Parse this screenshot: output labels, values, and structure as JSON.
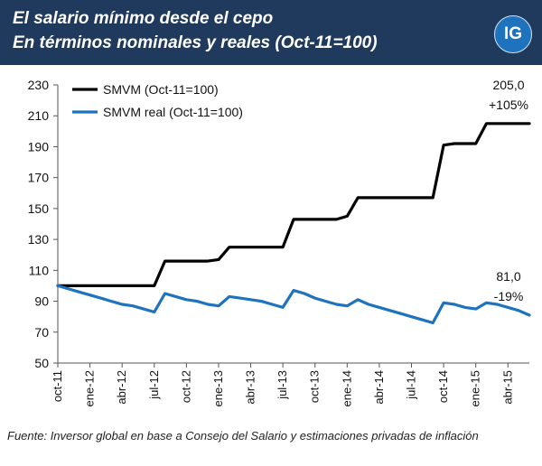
{
  "header": {
    "title_line1": "El salario mínimo desde el cepo",
    "title_line2": "En términos nominales y reales (Oct-11=100)",
    "logo": "IG"
  },
  "source": "Fuente: Inversor global en base a Consejo del Salario y estimaciones privadas de inflación",
  "colors": {
    "header_bg": "#1f3a5c",
    "nominal": "#000000",
    "real": "#1e73be",
    "logo": "#1e73be"
  },
  "chart_data": {
    "type": "line",
    "x": [
      "oct-11",
      "nov-11",
      "dic-11",
      "ene-12",
      "feb-12",
      "mar-12",
      "abr-12",
      "may-12",
      "jun-12",
      "jul-12",
      "ago-12",
      "sep-12",
      "oct-12",
      "nov-12",
      "dic-12",
      "ene-13",
      "feb-13",
      "mar-13",
      "abr-13",
      "may-13",
      "jun-13",
      "jul-13",
      "ago-13",
      "sep-13",
      "oct-13",
      "nov-13",
      "dic-13",
      "ene-14",
      "feb-14",
      "mar-14",
      "abr-14",
      "may-14",
      "jun-14",
      "jul-14",
      "ago-14",
      "sep-14",
      "oct-14",
      "nov-14",
      "dic-14",
      "ene-15",
      "feb-15",
      "mar-15",
      "abr-15",
      "may-15",
      "jun-15"
    ],
    "x_tick_labels": [
      "oct-11",
      "ene-12",
      "abr-12",
      "jul-12",
      "oct-12",
      "ene-13",
      "abr-13",
      "jul-13",
      "oct-13",
      "ene-14",
      "abr-14",
      "jul-14",
      "oct-14",
      "ene-15",
      "abr-15"
    ],
    "ylim": [
      50,
      230
    ],
    "y_ticks": [
      50,
      70,
      90,
      110,
      130,
      150,
      170,
      190,
      210,
      230
    ],
    "grid": false,
    "legend_position": "top-left",
    "series": [
      {
        "name": "SMVM (Oct-11=100)",
        "color": "#000000",
        "values": [
          100,
          100,
          100,
          100,
          100,
          100,
          100,
          100,
          100,
          100,
          116,
          116,
          116,
          116,
          116,
          117,
          125,
          125,
          125,
          125,
          125,
          125,
          143,
          143,
          143,
          143,
          143,
          145,
          157,
          157,
          157,
          157,
          157,
          157,
          157,
          157,
          191,
          192,
          192,
          192,
          205,
          205,
          205,
          205,
          205
        ]
      },
      {
        "name": "SMVM real (Oct-11=100)",
        "color": "#1e73be",
        "values": [
          100,
          98,
          96,
          94,
          92,
          90,
          88,
          87,
          85,
          83,
          95,
          93,
          91,
          90,
          88,
          87,
          93,
          92,
          91,
          90,
          88,
          86,
          97,
          95,
          92,
          90,
          88,
          87,
          91,
          88,
          86,
          84,
          82,
          80,
          78,
          76,
          89,
          88,
          86,
          85,
          89,
          88,
          86,
          84,
          81
        ]
      }
    ],
    "annotations": [
      {
        "series": 0,
        "value_label": "205,0",
        "change_label": "+105%"
      },
      {
        "series": 1,
        "value_label": "81,0",
        "change_label": "-19%"
      }
    ]
  }
}
